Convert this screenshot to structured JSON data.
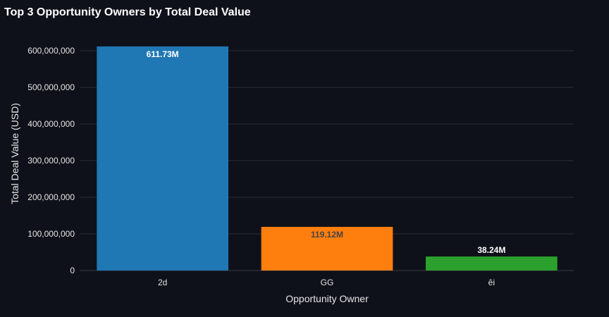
{
  "chart_data": {
    "type": "bar",
    "title": "Top 3 Opportunity Owners by Total Deal Value",
    "xlabel": "Opportunity Owner",
    "ylabel": "Total Deal Value (USD)",
    "categories": [
      "2d",
      "GG",
      "êi"
    ],
    "values": [
      611730000,
      119120000,
      38240000
    ],
    "data_labels": [
      "611.73M",
      "119.12M",
      "38.24M"
    ],
    "colors": [
      "#1f77b4",
      "#ff7f0e",
      "#2ca02c"
    ],
    "data_label_colors": [
      "#ffffff",
      "#444444",
      "#ffffff"
    ],
    "ylim": [
      0,
      600000000
    ],
    "yticks": [
      0,
      100000000,
      200000000,
      300000000,
      400000000,
      500000000,
      600000000
    ],
    "ytick_labels": [
      "0",
      "100,000,000",
      "200,000,000",
      "300,000,000",
      "400,000,000",
      "500,000,000",
      "600,000,000"
    ],
    "grid": true,
    "background": "#0f111a",
    "grid_color": "#2a2d36"
  }
}
